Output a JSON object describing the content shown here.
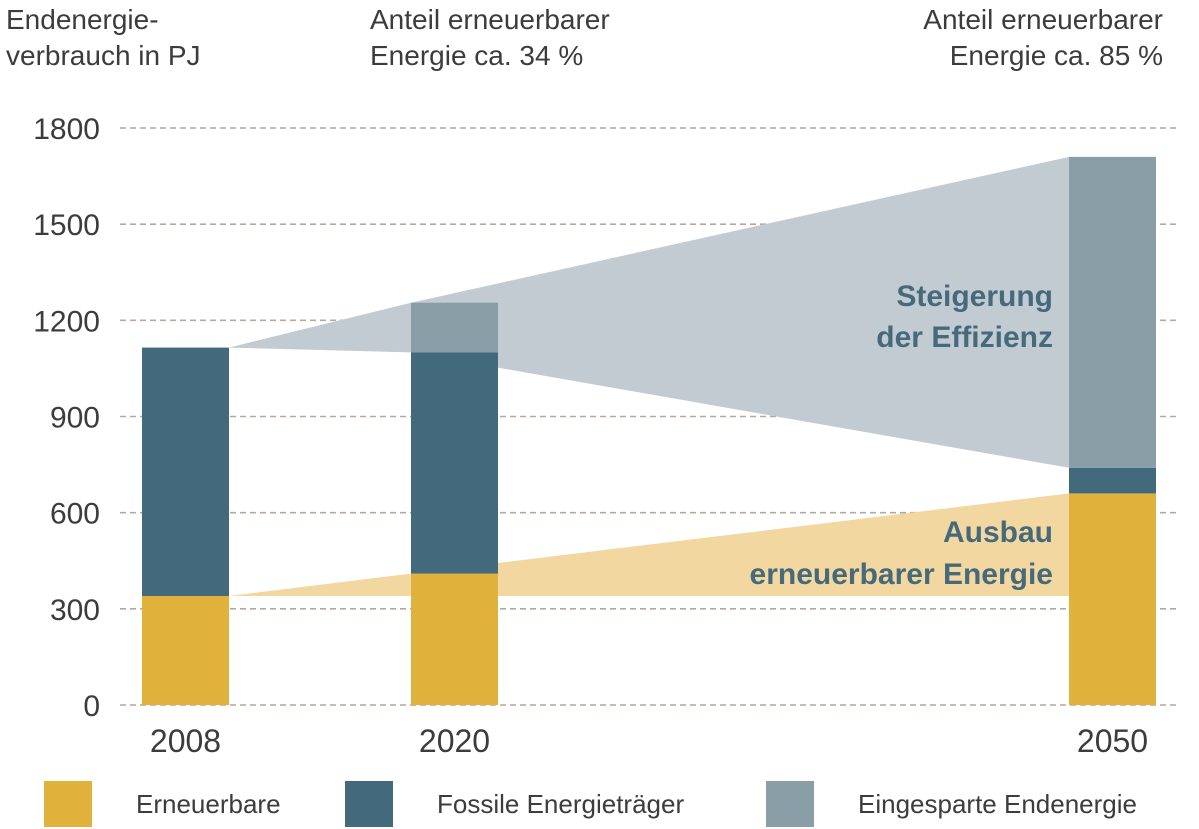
{
  "chart_data": {
    "type": "bar",
    "stacked": true,
    "categories": [
      "2008",
      "2020",
      "2050"
    ],
    "series": [
      {
        "name": "Erneuerbare",
        "values": [
          340,
          410,
          660
        ],
        "color": "#e0b23c"
      },
      {
        "name": "Fossile Energieträger",
        "values": [
          775,
          690,
          80
        ],
        "color": "#436a7c"
      },
      {
        "name": "Eingesparte Endenergie",
        "values": [
          0,
          155,
          970
        ],
        "color": "#8a9ea8"
      }
    ],
    "ylabel_lines": [
      "Endenergie-",
      "verbrauch in PJ"
    ],
    "yticks": [
      0,
      300,
      600,
      900,
      1200,
      1500,
      1800
    ],
    "ylim": [
      0,
      1800
    ],
    "grid": "horizontal dashed",
    "annotations": [
      {
        "lines": [
          "Anteil erneuerbarer",
          "Energie ca. 34 %"
        ],
        "category": "2020"
      },
      {
        "lines": [
          "Anteil erneuerbarer",
          "Energie ca. 85 %"
        ],
        "category": "2050"
      }
    ],
    "bands": [
      {
        "lines": [
          "Steigerung",
          "der Effizienz"
        ],
        "color": "#c3cbd2"
      },
      {
        "lines": [
          "Ausbau",
          "erneuerbarer Energie"
        ],
        "color": "#f2d8a0"
      }
    ],
    "legend_position": "bottom",
    "label_color": "#466a7c"
  }
}
